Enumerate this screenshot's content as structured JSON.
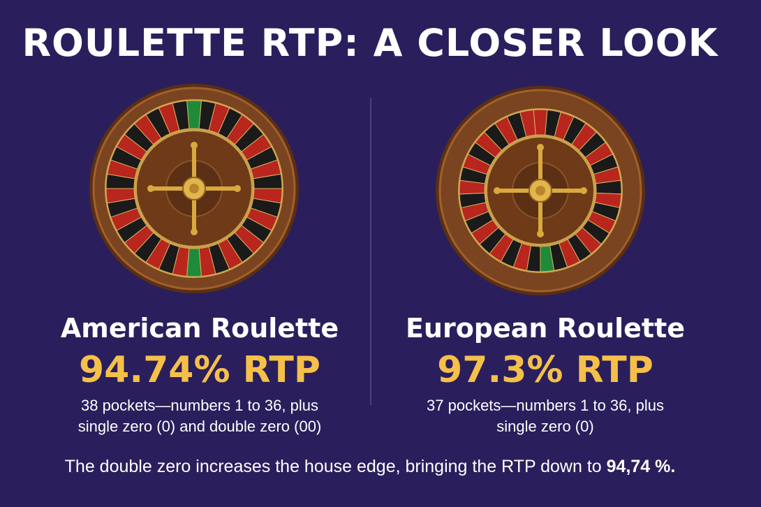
{
  "title": "ROULETTE RTP: A CLOSER LOOK",
  "american": {
    "name": "American Roulette",
    "rtp": "94.74% RTP",
    "desc_line1": "38 pockets—numbers 1 to 36, plus",
    "desc_line2": "single zero (0) and double zero (00)",
    "pockets": 38
  },
  "european": {
    "name": "European Roulette",
    "rtp": "97.3% RTP",
    "desc_line1": "37 pockets—numbers 1 to 36, plus",
    "desc_line2": "single zero (0)",
    "pockets": 37
  },
  "footer": {
    "text": "The double zero increases the house edge, bringing the RTP down to ",
    "highlight": "94,74 %."
  },
  "colors": {
    "background": "#2a1f5c",
    "accent": "#f5c04a",
    "red": "#b8261e",
    "black": "#1a1a1a",
    "green": "#1f8a3a",
    "wood": "#7a4420"
  }
}
